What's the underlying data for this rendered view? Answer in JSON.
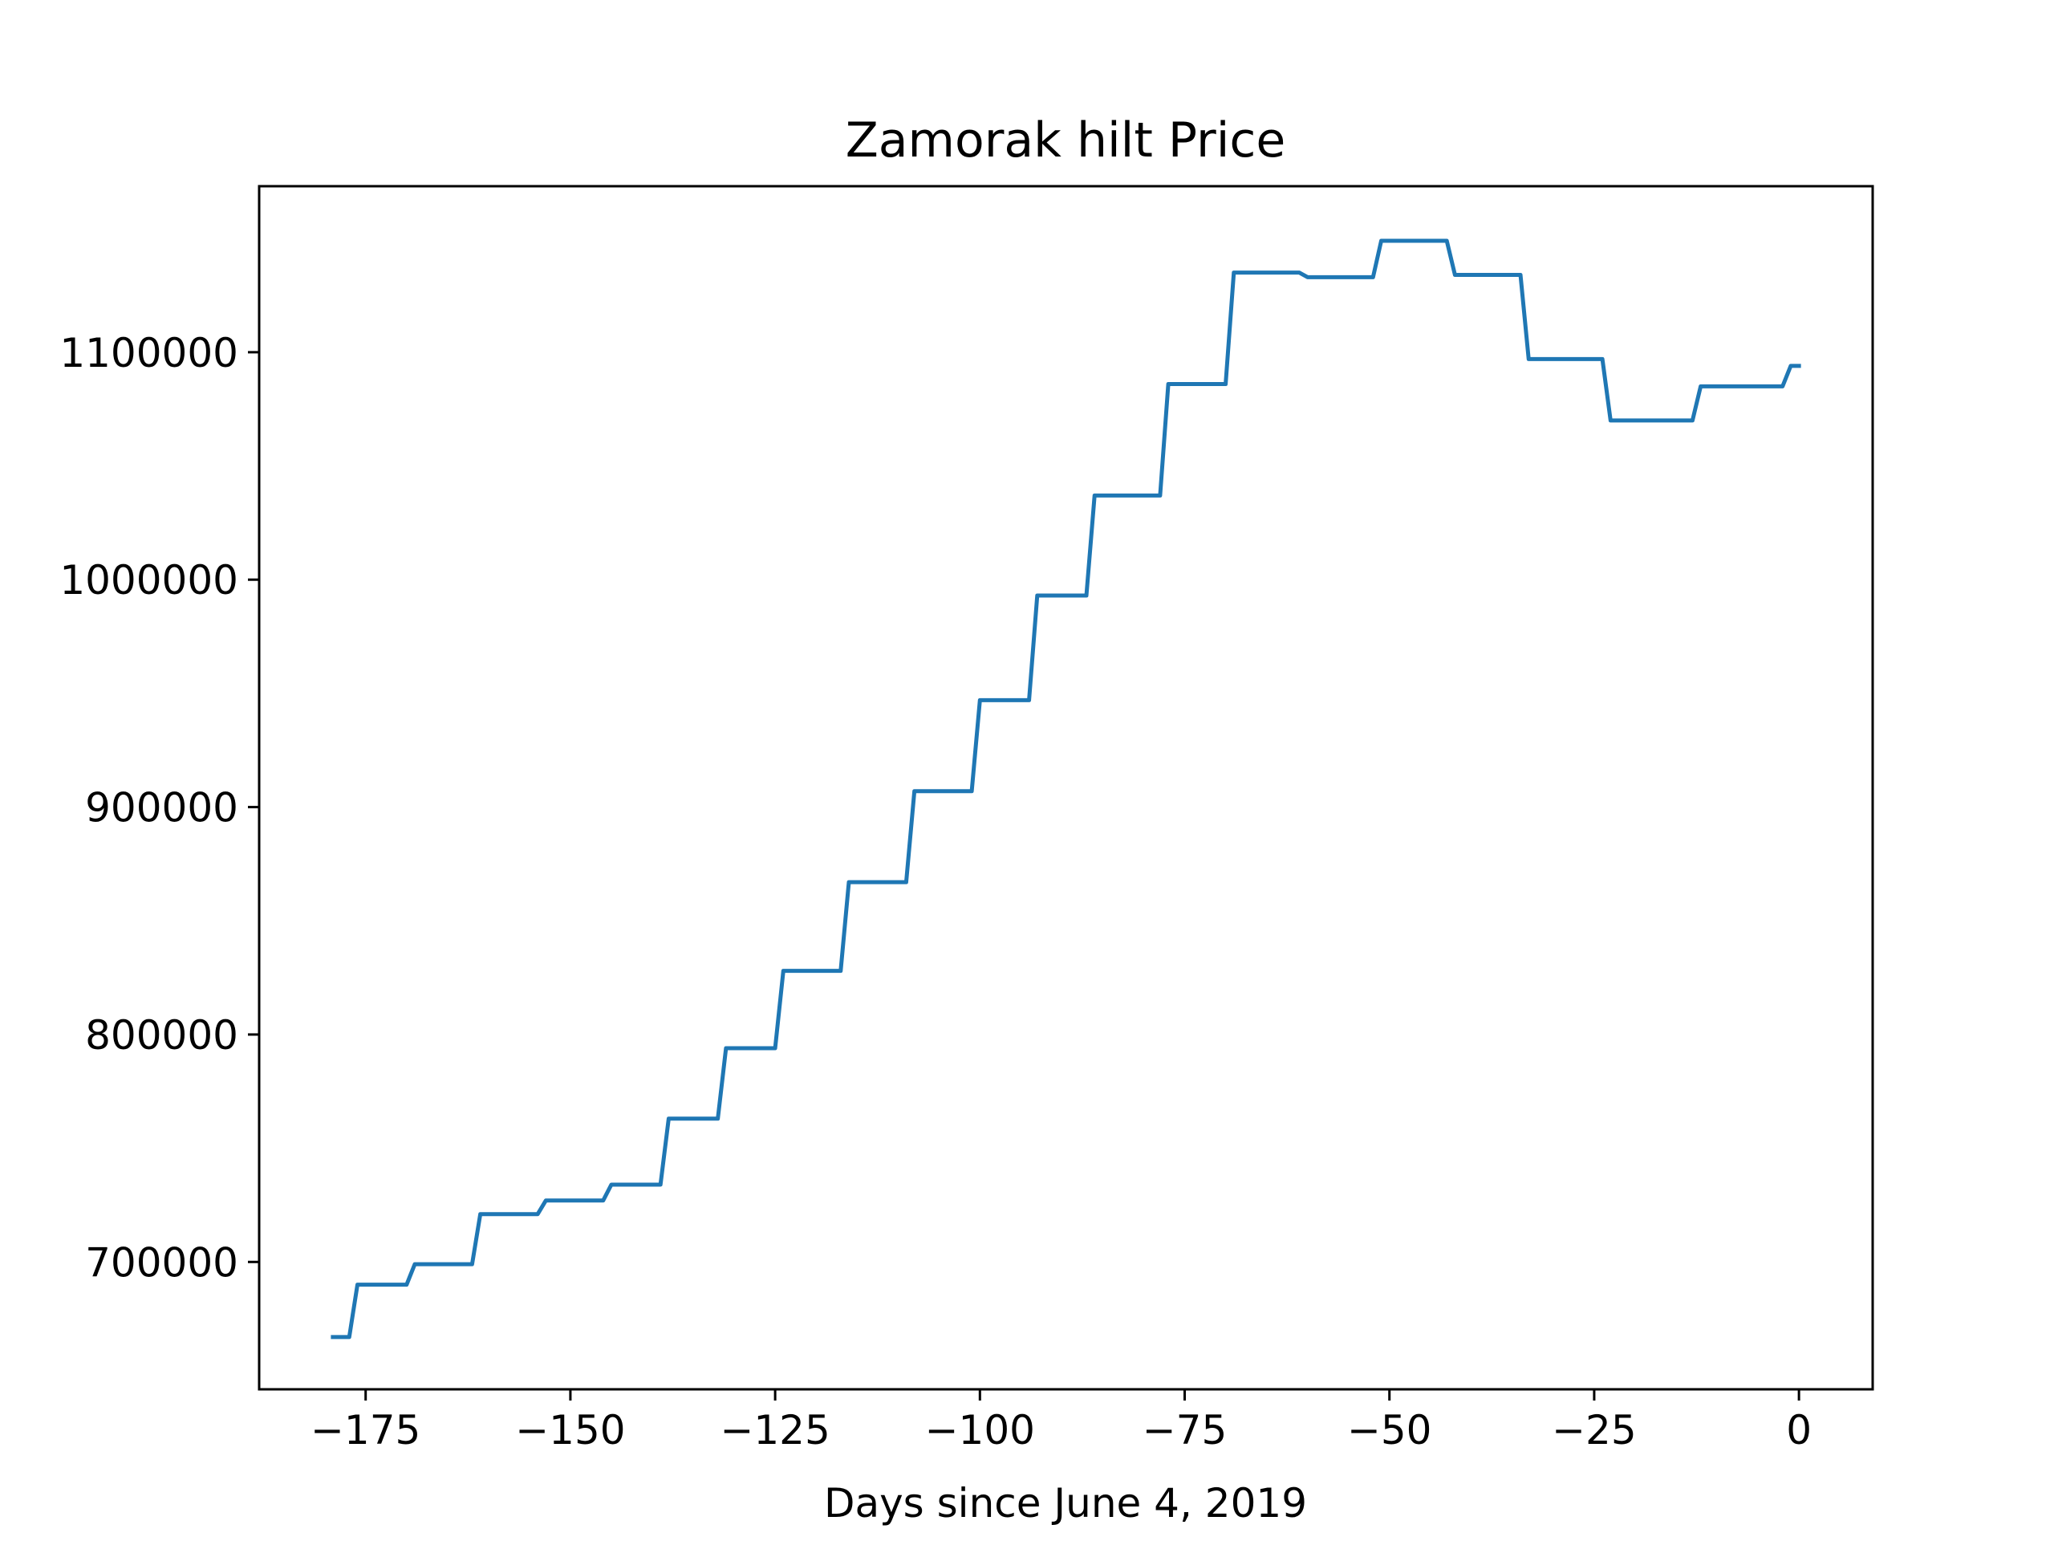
{
  "chart_data": {
    "type": "line",
    "title": "Zamorak hilt Price",
    "xlabel": "Days since June 4, 2019",
    "ylabel": "",
    "xlim": [
      -188,
      9
    ],
    "ylim": [
      644000,
      1173000
    ],
    "xticks": [
      -175,
      -150,
      -125,
      -100,
      -75,
      -50,
      -25,
      0
    ],
    "xtick_labels": [
      "−175",
      "−150",
      "−125",
      "−100",
      "−75",
      "−50",
      "−25",
      "0"
    ],
    "yticks": [
      700000,
      800000,
      900000,
      1000000,
      1100000
    ],
    "ytick_labels": [
      "700000",
      "800000",
      "900000",
      "1000000",
      "1100000"
    ],
    "grid": false,
    "series_color": "#1f77b4",
    "series": [
      {
        "x": [
          -179,
          -178,
          -177,
          -176,
          -170,
          -169,
          -162,
          -161,
          -154,
          -153,
          -146,
          -145,
          -139,
          -138,
          -132,
          -131,
          -125,
          -124,
          -117,
          -116,
          -109,
          -108,
          -101,
          -100,
          -94,
          -93,
          -87,
          -86,
          -78,
          -77,
          -70,
          -69,
          -61,
          -60,
          -52,
          -51,
          -43,
          -42,
          -34,
          -33,
          -24,
          -23,
          -13,
          -12,
          -2,
          -1,
          0
        ],
        "y": [
          667000,
          667000,
          667000,
          690000,
          690000,
          699000,
          699000,
          721000,
          721000,
          727000,
          727000,
          734000,
          734000,
          763000,
          763000,
          794000,
          794000,
          828000,
          828000,
          867000,
          867000,
          907000,
          907000,
          947000,
          947000,
          993000,
          993000,
          1037000,
          1037000,
          1086000,
          1086000,
          1135000,
          1135000,
          1133000,
          1133000,
          1149000,
          1149000,
          1134000,
          1134000,
          1097000,
          1097000,
          1070000,
          1070000,
          1085000,
          1085000,
          1094000,
          1094000
        ]
      }
    ]
  }
}
